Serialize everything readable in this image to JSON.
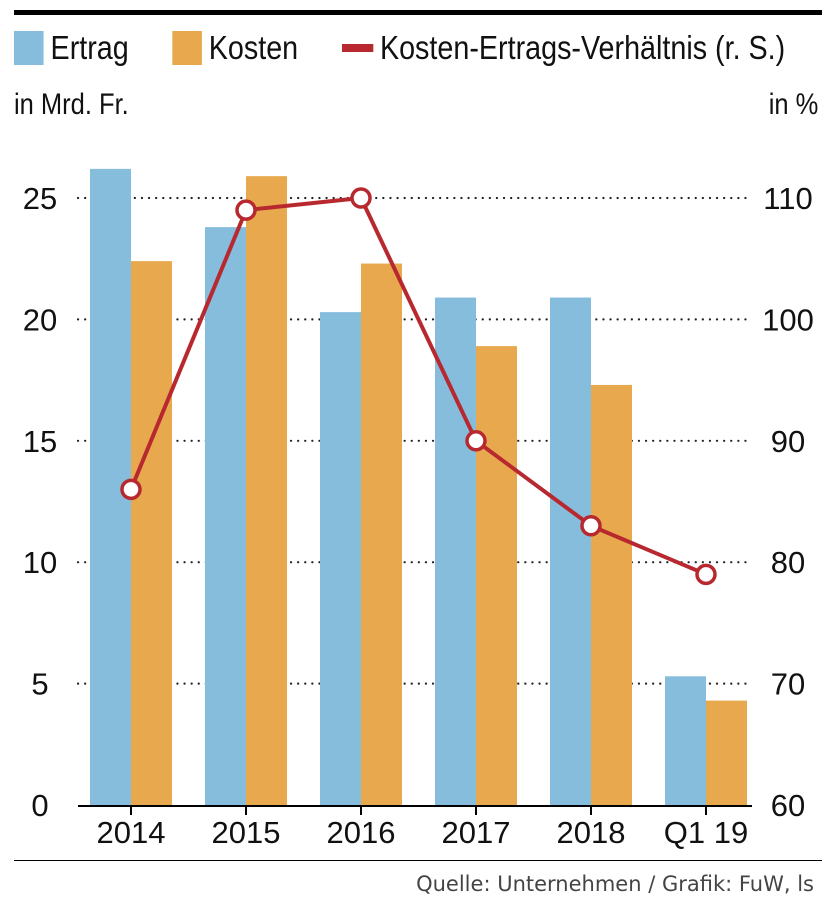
{
  "legend": {
    "ertrag": "Ertrag",
    "kosten": "Kosten",
    "ratio": "Kosten-Ertrags-Verhältnis (r. S.)"
  },
  "units": {
    "left": "in Mrd. Fr.",
    "right": "in %"
  },
  "source": "Quelle: Unternehmen / Grafik: FuW, ls",
  "colors": {
    "ertrag": "#86bcdc",
    "kosten": "#e8a94e",
    "ratio": "#b8292f"
  },
  "chart_data": {
    "type": "bar",
    "categories": [
      "2014",
      "2015",
      "2016",
      "2017",
      "2018",
      "Q1 19"
    ],
    "series": [
      {
        "name": "Ertrag",
        "axis": "left",
        "values": [
          26.2,
          23.8,
          20.3,
          20.9,
          20.9,
          5.3
        ]
      },
      {
        "name": "Kosten",
        "axis": "left",
        "values": [
          22.4,
          25.9,
          22.3,
          18.9,
          17.3,
          4.3
        ]
      },
      {
        "name": "Kosten-Ertrags-Verhältnis (r. S.)",
        "axis": "right",
        "type": "line",
        "values": [
          86,
          109,
          110,
          90,
          83,
          79
        ]
      }
    ],
    "ylim": [
      0,
      25
    ],
    "y_ticks": [
      "0",
      "5",
      "10",
      "15",
      "20",
      "25"
    ],
    "y2lim": [
      60,
      110
    ],
    "y2_ticks": [
      "60",
      "70",
      "80",
      "90",
      "100",
      "110"
    ],
    "ylabel": "in Mrd. Fr.",
    "y2label": "in %",
    "grid": "dotted horizontal",
    "legend_position": "top"
  }
}
